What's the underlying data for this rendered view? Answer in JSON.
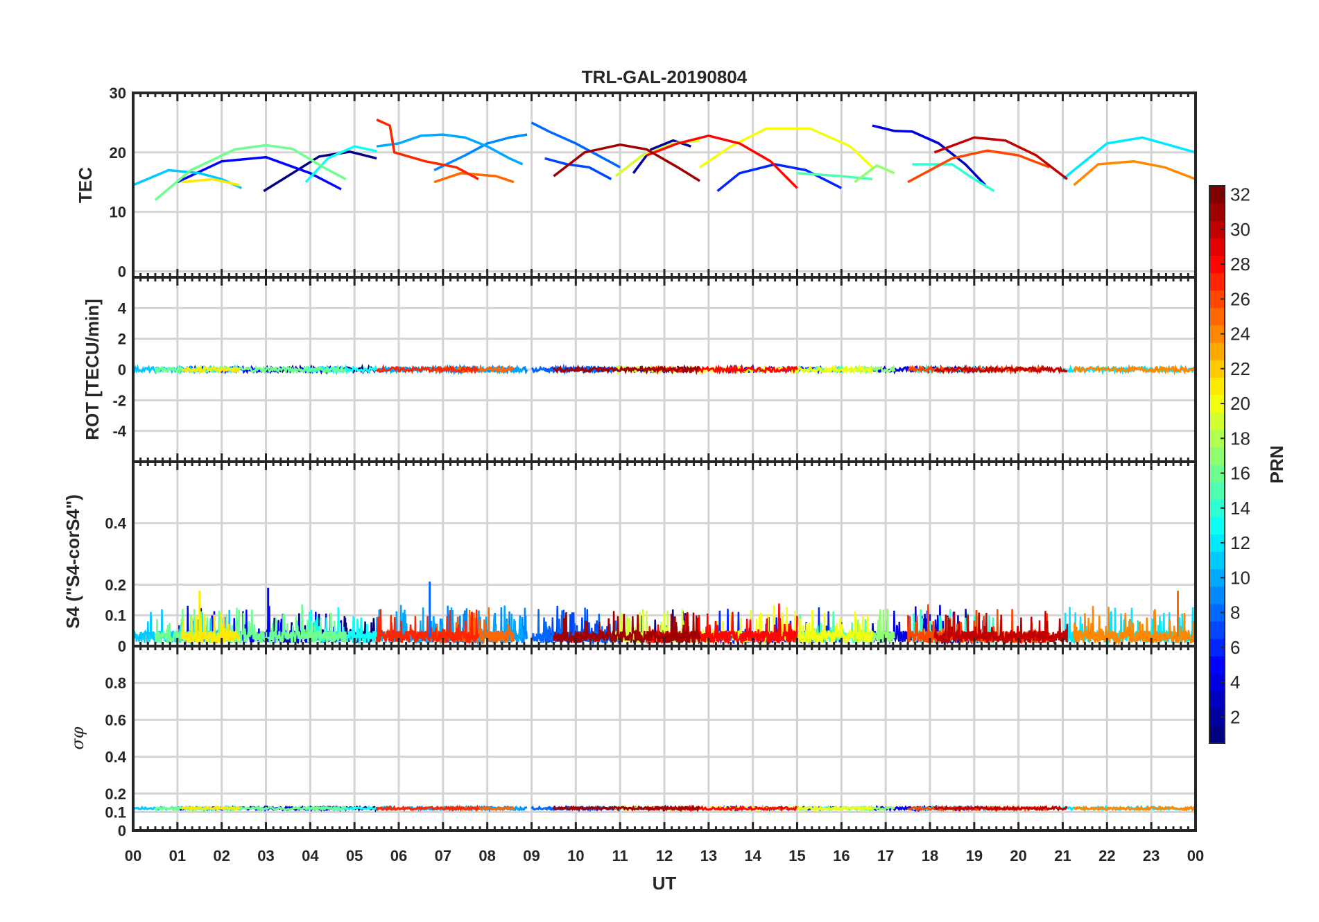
{
  "chart_data": {
    "type": "line",
    "title": "TRL-GAL-20190804",
    "x_axis": {
      "label": "UT",
      "range_hours": [
        0,
        24
      ],
      "ticks": [
        0,
        1,
        2,
        3,
        4,
        5,
        6,
        7,
        8,
        9,
        10,
        11,
        12,
        13,
        14,
        15,
        16,
        17,
        18,
        19,
        20,
        21,
        22,
        23,
        24
      ],
      "tick_labels": [
        "00",
        "01",
        "02",
        "03",
        "04",
        "05",
        "06",
        "07",
        "08",
        "09",
        "10",
        "11",
        "12",
        "13",
        "14",
        "15",
        "16",
        "17",
        "18",
        "19",
        "20",
        "21",
        "22",
        "23",
        "00"
      ]
    },
    "colorbar": {
      "label": "PRN",
      "range": [
        1,
        32
      ],
      "ticks": [
        2,
        4,
        6,
        8,
        10,
        12,
        14,
        16,
        18,
        20,
        22,
        24,
        26,
        28,
        30,
        32
      ],
      "tick_labels": [
        "2",
        "4",
        "6",
        "8",
        "10",
        "12",
        "14",
        "16",
        "18",
        "20",
        "22",
        "24",
        "26",
        "28",
        "30",
        "32"
      ],
      "colormap": "jet"
    },
    "panels": [
      {
        "id": "tec",
        "ylabel": "TEC",
        "ylim": [
          -1,
          30
        ],
        "yticks": [
          0,
          10,
          20,
          30
        ],
        "ytick_labels": [
          "0",
          "10",
          "20",
          "30"
        ],
        "series": [
          {
            "prn": 1,
            "points": [
              [
                2.95,
                13.5
              ],
              [
                3.6,
                16.5
              ],
              [
                4.2,
                19.3
              ],
              [
                4.9,
                20.1
              ],
              [
                5.5,
                19.0
              ]
            ]
          },
          {
            "prn": 2,
            "points": [
              [
                11.3,
                16.5
              ],
              [
                11.7,
                20.5
              ],
              [
                12.2,
                22.0
              ],
              [
                12.6,
                21.0
              ]
            ]
          },
          {
            "prn": 3,
            "points": [
              [
                17.6,
                23.5
              ],
              [
                18.2,
                21.5
              ],
              [
                18.8,
                18.0
              ],
              [
                19.25,
                14.5
              ]
            ]
          },
          {
            "prn": 4,
            "points": [
              [
                16.7,
                24.5
              ],
              [
                17.2,
                23.6
              ],
              [
                17.6,
                23.5
              ],
              [
                18.2,
                21.5
              ]
            ]
          },
          {
            "prn": 5,
            "points": [
              [
                1.0,
                15.0
              ],
              [
                2.0,
                18.5
              ],
              [
                3.0,
                19.2
              ],
              [
                4.0,
                16.5
              ],
              [
                4.7,
                13.8
              ]
            ]
          },
          {
            "prn": 6,
            "points": [
              [
                13.2,
                13.5
              ],
              [
                13.7,
                16.5
              ],
              [
                14.5,
                18.0
              ],
              [
                15.2,
                17.0
              ],
              [
                16.0,
                14.0
              ]
            ]
          },
          {
            "prn": 7,
            "points": [
              [
                9.3,
                19.0
              ],
              [
                9.8,
                18.0
              ],
              [
                10.3,
                17.5
              ],
              [
                10.8,
                15.5
              ]
            ]
          },
          {
            "prn": 8,
            "points": [
              [
                9.0,
                25.0
              ],
              [
                9.4,
                23.5
              ],
              [
                10.0,
                21.5
              ],
              [
                10.5,
                19.5
              ],
              [
                11.0,
                17.5
              ]
            ]
          },
          {
            "prn": 9,
            "points": [
              [
                6.8,
                17.0
              ],
              [
                7.5,
                19.5
              ],
              [
                8.0,
                21.5
              ],
              [
                8.5,
                22.5
              ],
              [
                8.9,
                23.0
              ]
            ]
          },
          {
            "prn": 10,
            "points": [
              [
                5.5,
                21.0
              ],
              [
                6.0,
                21.5
              ],
              [
                6.5,
                22.8
              ],
              [
                7.0,
                23.0
              ],
              [
                7.5,
                22.5
              ],
              [
                8.0,
                21.0
              ],
              [
                8.5,
                19.0
              ],
              [
                8.8,
                18.0
              ]
            ]
          },
          {
            "prn": 11,
            "points": [
              [
                0.0,
                14.5
              ],
              [
                0.8,
                17.0
              ],
              [
                1.5,
                16.5
              ],
              [
                2.0,
                15.5
              ],
              [
                2.45,
                14.0
              ]
            ]
          },
          {
            "prn": 12,
            "points": [
              [
                21.0,
                15.5
              ],
              [
                22.0,
                21.5
              ],
              [
                22.8,
                22.5
              ],
              [
                24.0,
                20.0
              ]
            ]
          },
          {
            "prn": 13,
            "points": [
              [
                3.9,
                15.0
              ],
              [
                4.4,
                19.0
              ],
              [
                5.0,
                21.0
              ],
              [
                5.5,
                20.2
              ]
            ]
          },
          {
            "prn": 14,
            "points": [
              [
                17.6,
                18.0
              ],
              [
                18.5,
                18.0
              ],
              [
                19.0,
                15.5
              ],
              [
                19.45,
                13.5
              ]
            ]
          },
          {
            "prn": 15,
            "points": [
              [
                15.0,
                16.5
              ],
              [
                16.0,
                16.0
              ],
              [
                16.7,
                15.5
              ]
            ]
          },
          {
            "prn": 16,
            "points": [
              [
                0.5,
                12.0
              ],
              [
                1.3,
                17.0
              ],
              [
                2.3,
                20.5
              ],
              [
                3.0,
                21.2
              ],
              [
                3.6,
                20.6
              ],
              [
                4.3,
                17.5
              ],
              [
                4.8,
                15.5
              ]
            ]
          },
          {
            "prn": 17,
            "points": [
              [
                16.3,
                15.0
              ],
              [
                16.8,
                17.8
              ],
              [
                17.2,
                16.5
              ]
            ]
          },
          {
            "prn": 19,
            "points": [
              [
                10.9,
                16.0
              ],
              [
                11.5,
                19.5
              ],
              [
                12.2,
                21.5
              ],
              [
                12.8,
                22.0
              ]
            ]
          },
          {
            "prn": 20,
            "points": [
              [
                12.8,
                17.5
              ],
              [
                13.5,
                21.0
              ],
              [
                14.3,
                24.0
              ],
              [
                15.3,
                24.0
              ],
              [
                16.2,
                21.0
              ],
              [
                16.7,
                17.5
              ]
            ]
          },
          {
            "prn": 21,
            "points": [
              [
                1.1,
                15.0
              ],
              [
                1.8,
                15.5
              ],
              [
                2.4,
                14.5
              ]
            ]
          },
          {
            "prn": 24,
            "points": [
              [
                21.25,
                14.5
              ],
              [
                21.8,
                18.0
              ],
              [
                22.6,
                18.5
              ],
              [
                23.3,
                17.5
              ],
              [
                24.0,
                15.5
              ]
            ]
          },
          {
            "prn": 25,
            "points": [
              [
                6.8,
                15.0
              ],
              [
                7.4,
                16.5
              ],
              [
                8.2,
                16.0
              ],
              [
                8.6,
                15.0
              ]
            ]
          },
          {
            "prn": 26,
            "points": [
              [
                17.5,
                15.0
              ],
              [
                18.5,
                19.0
              ],
              [
                19.3,
                20.3
              ],
              [
                20.0,
                19.5
              ],
              [
                20.7,
                17.5
              ]
            ]
          },
          {
            "prn": 27,
            "points": [
              [
                5.5,
                25.5
              ],
              [
                5.8,
                24.5
              ],
              [
                5.9,
                20.0
              ],
              [
                6.6,
                18.5
              ],
              [
                7.3,
                17.5
              ],
              [
                7.8,
                15.5
              ]
            ]
          },
          {
            "prn": 28,
            "points": [
              [
                11.6,
                19.5
              ],
              [
                12.3,
                21.5
              ],
              [
                13.0,
                22.8
              ],
              [
                13.7,
                21.5
              ],
              [
                14.4,
                18.5
              ],
              [
                15.0,
                14.0
              ]
            ]
          },
          {
            "prn": 30,
            "points": [
              [
                18.1,
                20.0
              ],
              [
                19.0,
                22.5
              ],
              [
                19.7,
                22.0
              ],
              [
                20.4,
                19.5
              ],
              [
                21.1,
                15.5
              ]
            ]
          },
          {
            "prn": 31,
            "points": [
              [
                9.5,
                16.0
              ],
              [
                10.2,
                20.0
              ],
              [
                11.0,
                21.3
              ],
              [
                11.6,
                20.5
              ],
              [
                12.3,
                17.5
              ],
              [
                12.8,
                15.2
              ]
            ]
          }
        ]
      },
      {
        "id": "rot",
        "ylabel": "ROT [TECU/min]",
        "ylim": [
          -6,
          6
        ],
        "yticks": [
          -4,
          -2,
          0,
          2,
          4
        ],
        "ytick_labels": [
          "-4",
          "-2",
          "0",
          "2",
          "4"
        ],
        "baseline": 0
      },
      {
        "id": "s4",
        "ylabel": "S4 (\"S4-corS4\")",
        "ylim": [
          0,
          0.6
        ],
        "yticks": [
          0,
          0.1,
          0.2,
          0.4
        ],
        "ytick_labels": [
          "0",
          "0.1",
          "0.2",
          "0.4"
        ],
        "typical_range": [
          0.01,
          0.14
        ],
        "notable_peaks": [
          {
            "ut": 3.05,
            "value": 0.19,
            "prn": 5
          },
          {
            "ut": 6.7,
            "value": 0.21,
            "prn": 8
          },
          {
            "ut": 1.5,
            "value": 0.18,
            "prn": 21
          },
          {
            "ut": 23.6,
            "value": 0.18,
            "prn": 25
          }
        ]
      },
      {
        "id": "sigma_phi",
        "ylabel": "σφ",
        "ylim": [
          0,
          1
        ],
        "yticks": [
          0,
          0.1,
          0.2,
          0.4,
          0.6,
          0.8
        ],
        "ytick_labels": [
          "0",
          "0.1",
          "0.2",
          "0.4",
          "0.6",
          "0.8"
        ],
        "baseline": 0.12
      }
    ]
  }
}
